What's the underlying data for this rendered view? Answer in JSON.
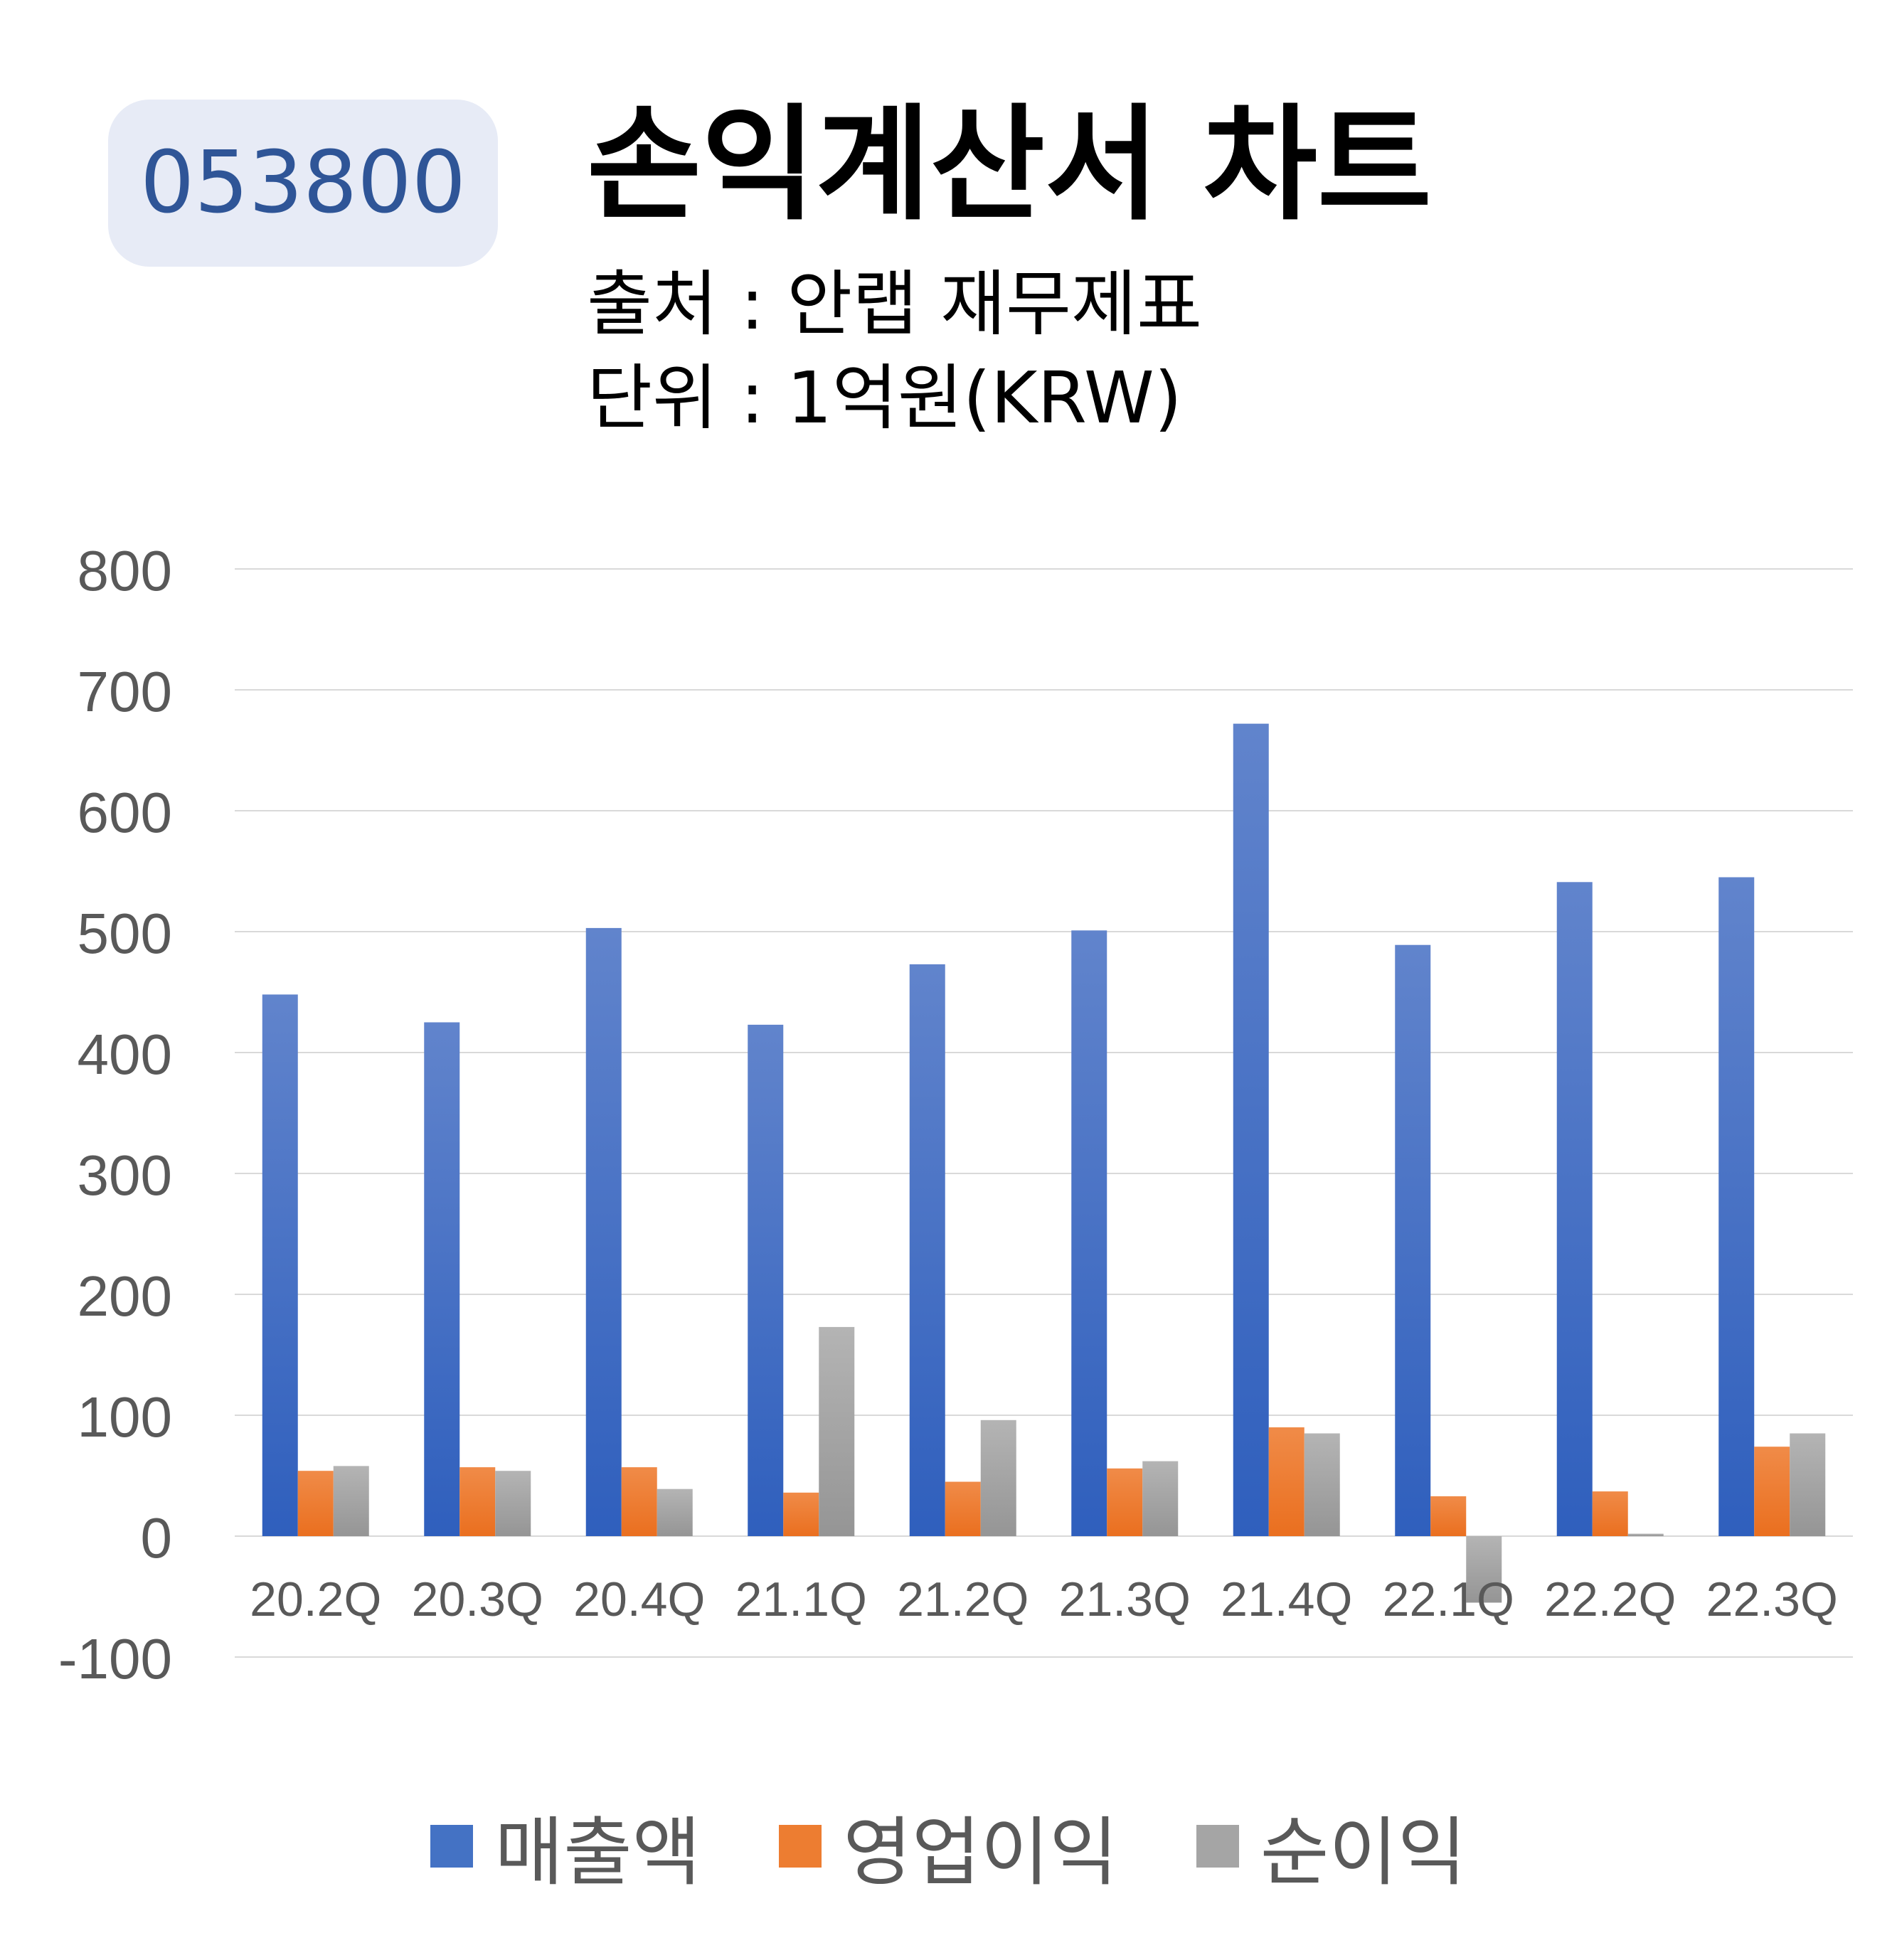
{
  "header": {
    "ticker": "053800",
    "title": "손익계산서 차트",
    "source": "출처 : 안랩 재무제표",
    "unit": "단위 : 1억원(KRW)"
  },
  "chart_data": {
    "type": "bar",
    "categories": [
      "20.2Q",
      "20.3Q",
      "20.4Q",
      "21.1Q",
      "21.2Q",
      "21.3Q",
      "21.4Q",
      "22.1Q",
      "22.2Q",
      "22.3Q"
    ],
    "series": [
      {
        "name": "매출액",
        "color": "#4472c4",
        "values": [
          448,
          425,
          503,
          423,
          473,
          501,
          672,
          489,
          541,
          545
        ]
      },
      {
        "name": "영업이익",
        "color": "#ed7d31",
        "values": [
          54,
          57,
          57,
          36,
          45,
          56,
          90,
          33,
          37,
          74
        ]
      },
      {
        "name": "순이익",
        "color": "#a5a5a5",
        "values": [
          58,
          54,
          39,
          173,
          96,
          62,
          85,
          -55,
          2,
          85
        ]
      }
    ],
    "ylim": [
      -100,
      800
    ],
    "yticks": [
      -100,
      0,
      100,
      200,
      300,
      400,
      500,
      600,
      700,
      800
    ],
    "grid": true,
    "legend": "bottom"
  }
}
